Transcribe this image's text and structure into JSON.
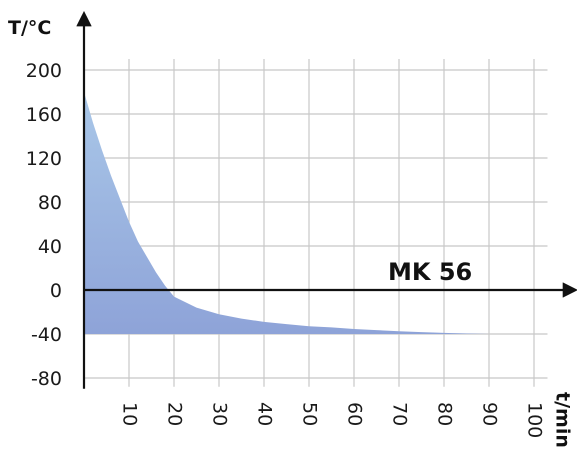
{
  "chart_data": {
    "type": "area",
    "title": "",
    "xlabel": "t/min",
    "ylabel": "T/°C",
    "annotation": "MK 56",
    "x_ticks": [
      10,
      20,
      30,
      40,
      50,
      60,
      70,
      80,
      90,
      100
    ],
    "y_ticks": [
      200,
      160,
      120,
      80,
      40,
      0,
      -40,
      -80
    ],
    "xlim": [
      0,
      103
    ],
    "ylim": [
      -88,
      210
    ],
    "grid": true,
    "fill_baseline": -40,
    "colors": {
      "fill_top": "#a9c7e8",
      "fill_bottom": "#8ea3d8",
      "grid": "#c8c8c8",
      "axis": "#111111"
    },
    "series": [
      {
        "x": [
          0,
          2,
          4,
          6,
          8,
          10,
          12,
          14,
          16,
          18,
          20,
          25,
          30,
          35,
          40,
          45,
          50,
          55,
          60,
          65,
          70,
          75,
          80,
          85,
          90
        ],
        "y": [
          180,
          152,
          127,
          104,
          83,
          62,
          44,
          30,
          16,
          4,
          -6,
          -16,
          -22,
          -26,
          -29,
          -31,
          -33,
          -34,
          -35.5,
          -36.5,
          -37.5,
          -38.3,
          -39,
          -39.5,
          -40
        ]
      }
    ]
  }
}
